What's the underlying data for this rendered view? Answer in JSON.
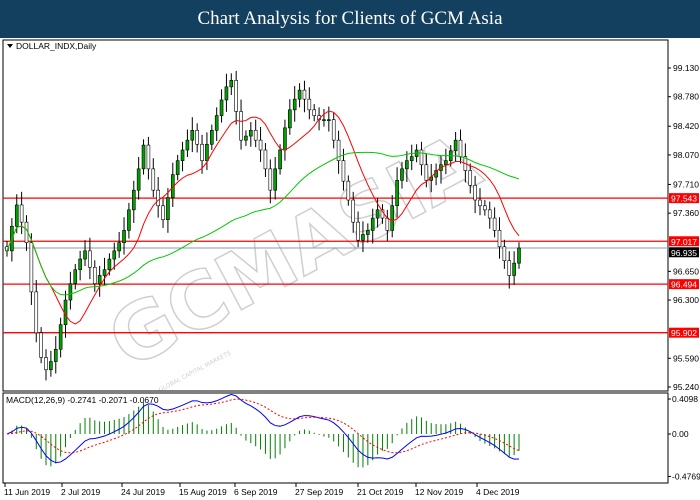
{
  "header": {
    "title": "Chart Analysis for Clients of GCM Asia"
  },
  "watermark": {
    "brand": "GCMASIA",
    "tagline": "GLOBAL CAPITAL MARKETS"
  },
  "chart_data": {
    "type": "candlestick",
    "symbol_label": "DOLLAR_INDX,Daily",
    "timeframe": "Daily",
    "ylim": [
      95.24,
      99.13
    ],
    "y_ticks": [
      "99.130",
      "98.780",
      "98.420",
      "98.070",
      "97.710",
      "97.360",
      "96.650",
      "96.300",
      "95.590",
      "95.240"
    ],
    "x_ticks": [
      "11 Jun 2019",
      "2 Jul 2019",
      "24 Jul 2019",
      "15 Aug 2019",
      "6 Sep 2019",
      "27 Sep 2019",
      "21 Oct 2019",
      "12 Nov 2019",
      "4 Dec 2019"
    ],
    "closes": [
      96.9,
      97.2,
      97.46,
      97.25,
      97.0,
      96.4,
      95.9,
      95.6,
      95.45,
      95.55,
      95.7,
      96.0,
      96.3,
      96.5,
      96.67,
      96.8,
      96.9,
      96.7,
      96.5,
      96.6,
      96.67,
      96.8,
      96.9,
      97.0,
      97.15,
      97.4,
      97.64,
      97.9,
      98.19,
      97.9,
      97.64,
      97.45,
      97.28,
      97.55,
      97.83,
      98.0,
      98.13,
      98.25,
      98.37,
      98.2,
      98.0,
      98.2,
      98.37,
      98.55,
      98.74,
      98.9,
      98.98,
      98.6,
      98.25,
      98.3,
      98.37,
      98.25,
      98.13,
      97.9,
      97.64,
      97.9,
      98.13,
      98.4,
      98.62,
      98.75,
      98.86,
      98.75,
      98.62,
      98.55,
      98.5,
      98.5,
      98.5,
      98.25,
      98.0,
      97.75,
      97.52,
      97.25,
      97.03,
      97.1,
      97.15,
      97.3,
      97.4,
      97.3,
      97.15,
      97.45,
      97.76,
      97.9,
      98.0,
      98.05,
      98.13,
      97.95,
      97.76,
      97.8,
      97.88,
      97.95,
      98.0,
      98.12,
      98.25,
      98.05,
      97.88,
      97.7,
      97.52,
      97.45,
      97.4,
      97.3,
      97.15,
      96.95,
      96.78,
      96.6,
      96.75,
      96.935
    ],
    "current_price": {
      "value": "96.935",
      "color": "#000000"
    },
    "levels": [
      {
        "value": 97.543,
        "label": "97.543"
      },
      {
        "value": 97.017,
        "label": "97.017"
      },
      {
        "value": 96.494,
        "label": "96.494"
      },
      {
        "value": 95.902,
        "label": "95.902"
      }
    ],
    "moving_averages": [
      {
        "period": 10,
        "color": "#ff0000"
      },
      {
        "period": 50,
        "color": "#00c800"
      }
    ],
    "macd": {
      "label": "MACD(12,26,9) -0.2741 -0.2071 -0.0670",
      "ylim": [
        -0.4769,
        0.4098
      ],
      "y_ticks": [
        "0.4098",
        "0.00",
        "-0.4769"
      ],
      "macd_color": "#0000ff",
      "signal_color": "#ff0000",
      "hist_color": "#008000"
    },
    "colors": {
      "level": "#ff0000",
      "candle_up": "#00a000",
      "candle_down": "#000000",
      "title_bg": "#13405f"
    }
  }
}
